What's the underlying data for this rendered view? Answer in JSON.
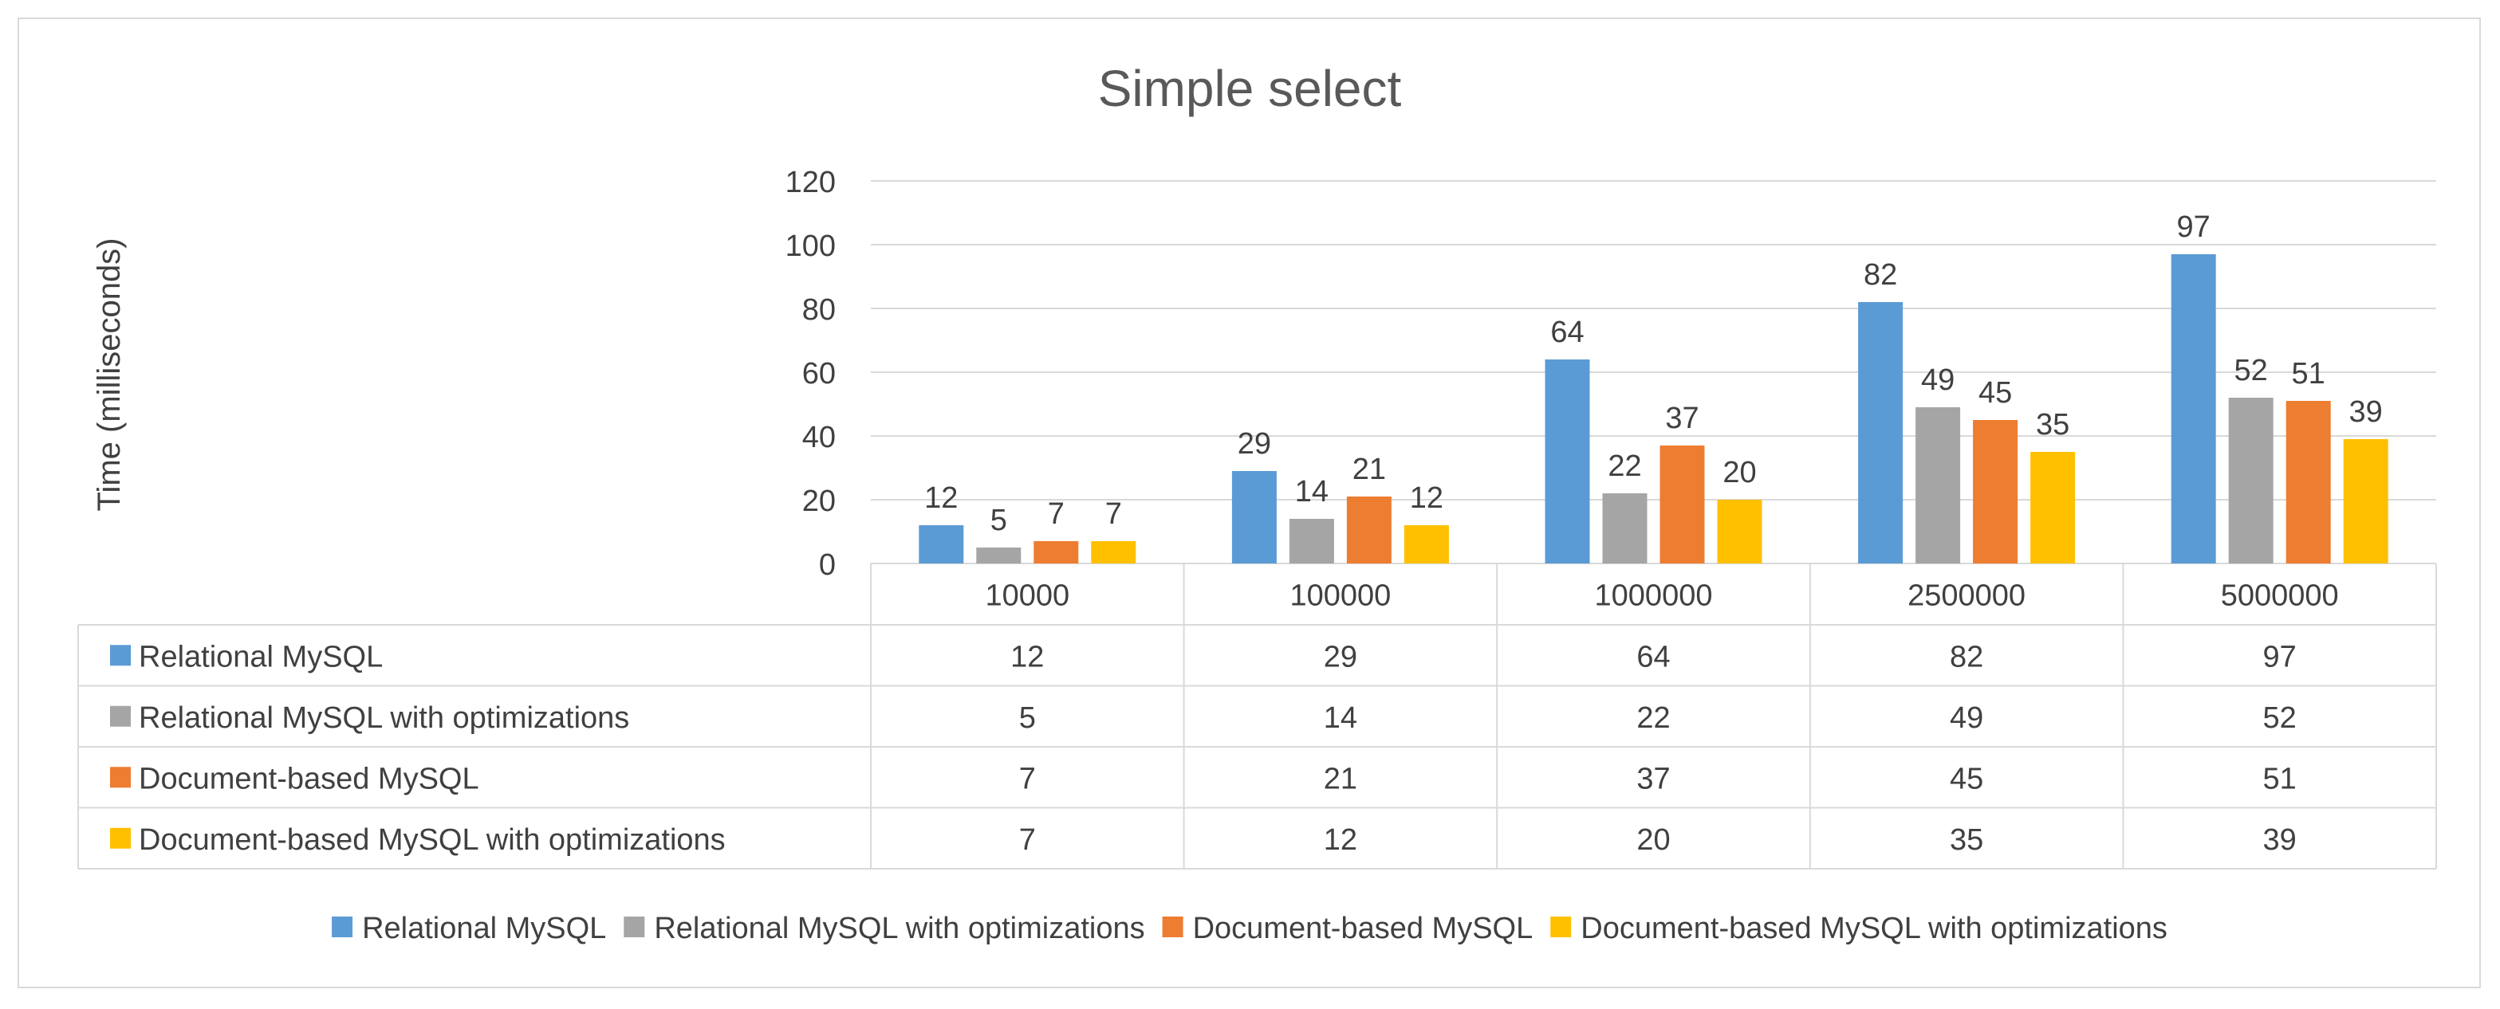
{
  "chart_data": {
    "type": "bar",
    "title": "Simple select",
    "ylabel": "Time (milliseconds)",
    "xlabel": "",
    "ylim": [
      0,
      120
    ],
    "yticks": [
      0,
      20,
      40,
      60,
      80,
      100,
      120
    ],
    "grid": true,
    "legend": "bottom",
    "data_table": true,
    "categories": [
      "10000",
      "100000",
      "1000000",
      "2500000",
      "5000000"
    ],
    "series": [
      {
        "name": "Relational MySQL",
        "color": "#5b9bd5",
        "values": [
          12,
          29,
          64,
          82,
          97
        ]
      },
      {
        "name": "Relational MySQL with optimizations",
        "color": "#a5a5a5",
        "values": [
          5,
          14,
          22,
          49,
          52
        ]
      },
      {
        "name": "Document-based MySQL",
        "color": "#ed7d31",
        "values": [
          7,
          21,
          37,
          45,
          51
        ]
      },
      {
        "name": "Document-based MySQL with optimizations",
        "color": "#ffc000",
        "values": [
          7,
          12,
          20,
          35,
          39
        ]
      }
    ]
  }
}
